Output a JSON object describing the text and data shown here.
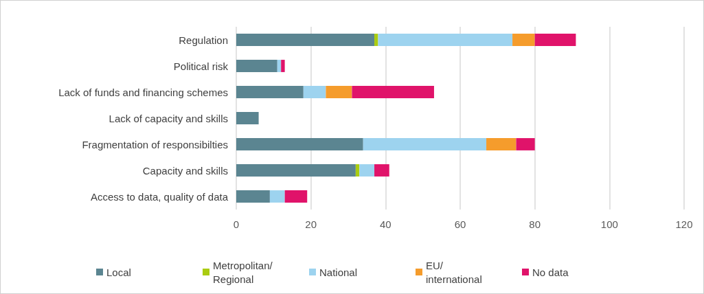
{
  "chart_data": {
    "type": "bar",
    "orientation": "horizontal",
    "stacked": true,
    "categories": [
      "Regulation",
      "Political risk",
      "Lack of funds and financing schemes",
      "Lack of capacity and skills",
      "Fragmentation of responsibilties",
      "Capacity and skills",
      "Access to data, quality of data"
    ],
    "series": [
      {
        "name": "Local",
        "color": "#5b8591",
        "values": [
          37,
          11,
          18,
          6,
          34,
          32,
          9
        ]
      },
      {
        "name": "Metropolitan/ Regional",
        "color": "#aacc11",
        "values": [
          1,
          0,
          0,
          0,
          0,
          1,
          0
        ]
      },
      {
        "name": "National",
        "color": "#9dd3ef",
        "values": [
          36,
          1,
          6,
          0,
          33,
          4,
          4
        ]
      },
      {
        "name": "EU/ international",
        "color": "#f59c2c",
        "values": [
          6,
          0,
          7,
          0,
          8,
          0,
          0
        ]
      },
      {
        "name": "No data",
        "color": "#e0136a",
        "values": [
          11,
          1,
          22,
          0,
          5,
          4,
          6
        ]
      }
    ],
    "xlim": [
      0,
      120
    ],
    "xticks": [
      0,
      20,
      40,
      60,
      80,
      100,
      120
    ],
    "grid": "x",
    "legend": "bottom"
  }
}
